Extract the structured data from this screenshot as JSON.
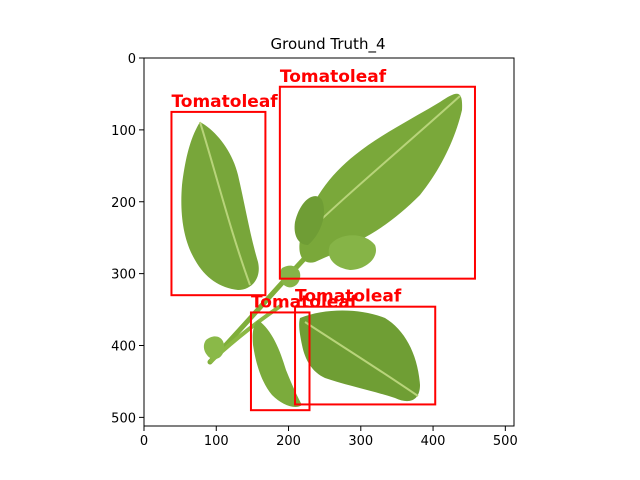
{
  "figure": {
    "title": "Ground Truth_4"
  },
  "chart_data": {
    "type": "image-annotation",
    "title": "Ground Truth_4",
    "xlim": [
      0,
      512
    ],
    "ylim": [
      512,
      0
    ],
    "x_ticks": [
      0,
      100,
      200,
      300,
      400,
      500
    ],
    "y_ticks": [
      0,
      100,
      200,
      300,
      400,
      500
    ],
    "box_color": "#ff0000",
    "boxes": [
      {
        "label": "Tomatoleaf",
        "x1": 38,
        "y1": 75,
        "x2": 168,
        "y2": 330
      },
      {
        "label": "Tomatoleaf",
        "x1": 188,
        "y1": 40,
        "x2": 458,
        "y2": 307
      },
      {
        "label": "Tomatoleaf",
        "x1": 148,
        "y1": 354,
        "x2": 229,
        "y2": 490
      },
      {
        "label": "Tomatoleaf",
        "x1": 209,
        "y1": 346,
        "x2": 403,
        "y2": 482
      }
    ]
  }
}
